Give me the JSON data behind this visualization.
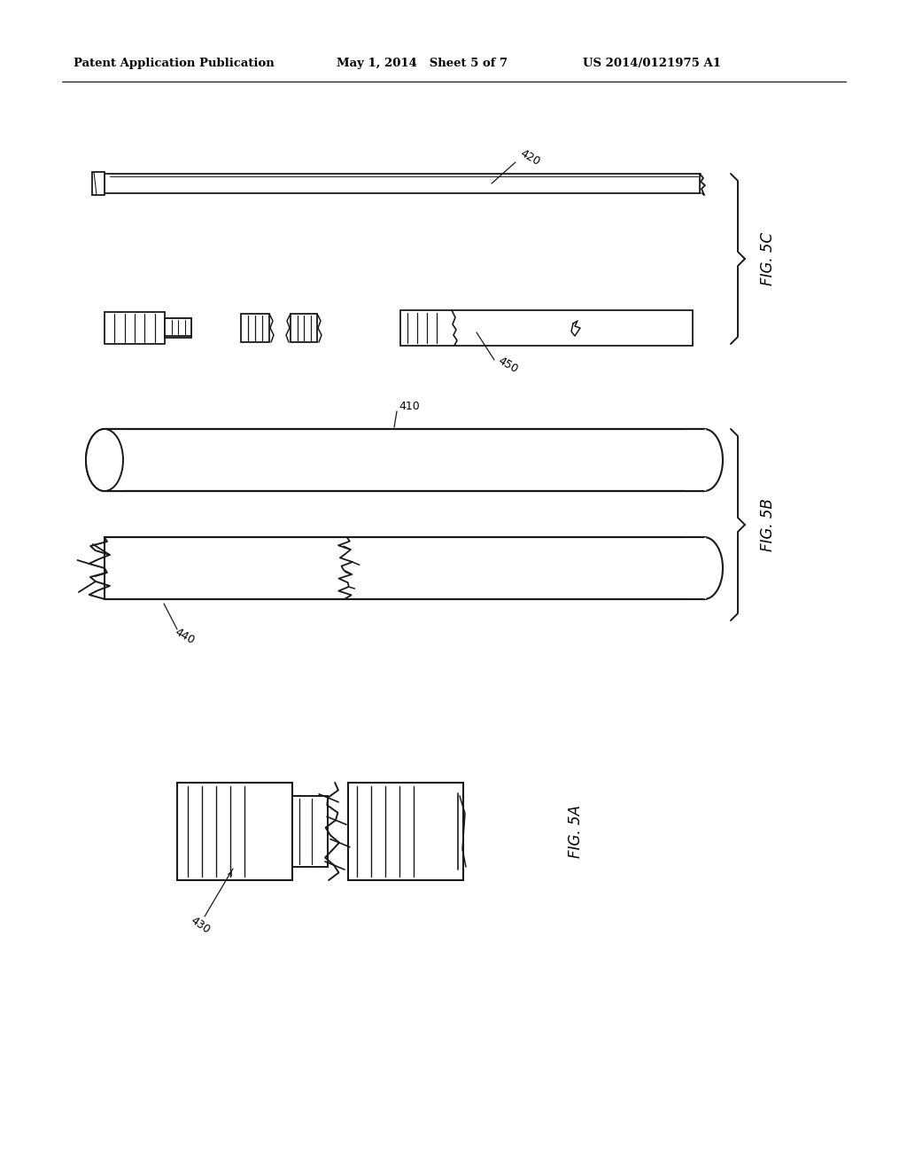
{
  "background_color": "#ffffff",
  "header_left": "Patent Application Publication",
  "header_middle": "May 1, 2014   Sheet 5 of 7",
  "header_right": "US 2014/0121975 A1",
  "fig5c_label": "FIG. 5C",
  "fig5b_label": "FIG. 5B",
  "fig5a_label": "FIG. 5A",
  "label_420": "420",
  "label_450": "450",
  "label_440": "440",
  "label_410": "410",
  "label_430": "430",
  "lc": "#1a1a1a"
}
